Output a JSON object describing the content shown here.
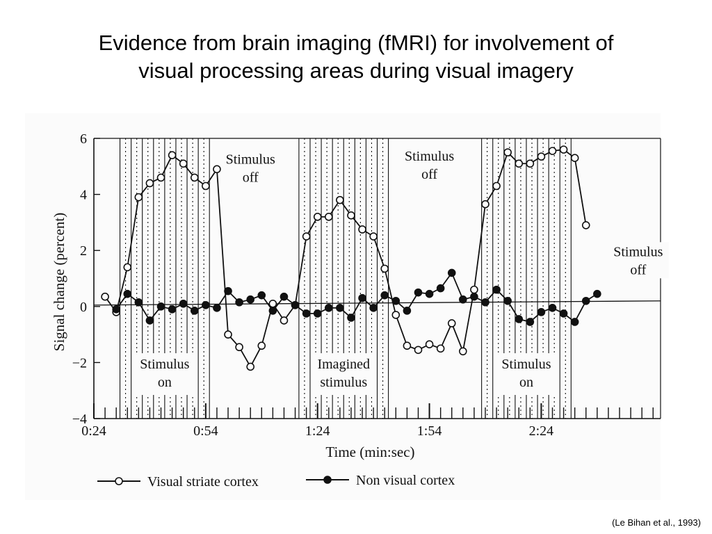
{
  "slide": {
    "title_line1": "Evidence from brain imaging (fMRI) for involvement of",
    "title_line2": "visual processing areas during visual imagery",
    "citation": "(Le Bihan et al., 1993)"
  },
  "colors": {
    "background": "#ffffff",
    "figure_background": "#fbfbfb",
    "ink": "#111111"
  },
  "chart_data": {
    "type": "line",
    "title": "",
    "xlabel": "Time (min:sec)",
    "ylabel": "Signal change (percent)",
    "ylim": [
      -4,
      6
    ],
    "xlim": [
      24,
      176
    ],
    "yticks": [
      6,
      4,
      2,
      0,
      -2,
      -4
    ],
    "ytick_labels": [
      "6",
      "4",
      "2",
      "0",
      "−2",
      "−4"
    ],
    "xticks": [
      {
        "value": 24,
        "label": "0:24"
      },
      {
        "value": 54,
        "label": "0:54"
      },
      {
        "value": 84,
        "label": "1:24"
      },
      {
        "value": 114,
        "label": "1:54"
      },
      {
        "value": 144,
        "label": "2:24"
      }
    ],
    "grid": false,
    "legend": "bottom",
    "baseline": {
      "x": [
        24,
        176
      ],
      "y": [
        0.05,
        0.2
      ]
    },
    "stimulus_blocks": [
      {
        "x_start": 31,
        "x_end": 55,
        "label_lines": [
          "Stimulus",
          "on"
        ]
      },
      {
        "x_start": 79,
        "x_end": 103,
        "label_lines": [
          "Imagined",
          "stimulus"
        ]
      },
      {
        "x_start": 128,
        "x_end": 152,
        "label_lines": [
          "Stimulus",
          "on"
        ]
      }
    ],
    "annotations": [
      {
        "lines": [
          "Stimulus",
          "off"
        ],
        "x": 66,
        "y": 5.1
      },
      {
        "lines": [
          "Stimulus",
          "off"
        ],
        "x": 114,
        "y": 5.2
      },
      {
        "lines": [
          "Stimulus",
          "off"
        ],
        "x": 170,
        "y": 1.8
      }
    ],
    "series": [
      {
        "name": "Visual striate cortex",
        "marker": "open-circle",
        "x": [
          27,
          30,
          33,
          36,
          39,
          42,
          45,
          48,
          51,
          54,
          57,
          60,
          63,
          66,
          69,
          72,
          75,
          78,
          81,
          84,
          87,
          90,
          93,
          96,
          99,
          102,
          105,
          108,
          111,
          114,
          117,
          120,
          123,
          126,
          129,
          132,
          135,
          138,
          141,
          144,
          147,
          150,
          153,
          156,
          159
        ],
        "y": [
          0.35,
          -0.2,
          1.4,
          3.9,
          4.4,
          4.6,
          5.4,
          5.1,
          4.6,
          4.3,
          4.9,
          -1.0,
          -1.45,
          -2.15,
          -1.4,
          0.1,
          -0.5,
          0.05,
          2.5,
          3.2,
          3.2,
          3.8,
          3.25,
          2.75,
          2.5,
          1.35,
          -0.3,
          -1.4,
          -1.55,
          -1.35,
          -1.5,
          -0.6,
          -1.6,
          0.6,
          3.65,
          4.3,
          5.5,
          5.1,
          5.1,
          5.35,
          5.55,
          5.6,
          5.3,
          2.9,
          null
        ]
      },
      {
        "name": "Non visual cortex",
        "marker": "filled-circle",
        "x": [
          27,
          30,
          33,
          36,
          39,
          42,
          45,
          48,
          51,
          54,
          57,
          60,
          63,
          66,
          69,
          72,
          75,
          78,
          81,
          84,
          87,
          90,
          93,
          96,
          99,
          102,
          105,
          108,
          111,
          114,
          117,
          120,
          123,
          126,
          129,
          132,
          135,
          138,
          141,
          144,
          147,
          150,
          153,
          156,
          159
        ],
        "y": [
          null,
          -0.1,
          0.45,
          0.15,
          -0.5,
          0.0,
          -0.1,
          0.1,
          -0.15,
          0.05,
          -0.05,
          0.55,
          0.15,
          0.25,
          0.4,
          -0.15,
          0.35,
          0.05,
          -0.25,
          -0.25,
          -0.05,
          -0.05,
          -0.4,
          0.3,
          -0.05,
          0.4,
          0.2,
          -0.15,
          0.5,
          0.45,
          0.65,
          1.2,
          0.25,
          0.35,
          0.15,
          0.6,
          0.2,
          -0.45,
          -0.55,
          -0.2,
          -0.05,
          -0.25,
          -0.55,
          0.2,
          0.45
        ]
      }
    ]
  }
}
